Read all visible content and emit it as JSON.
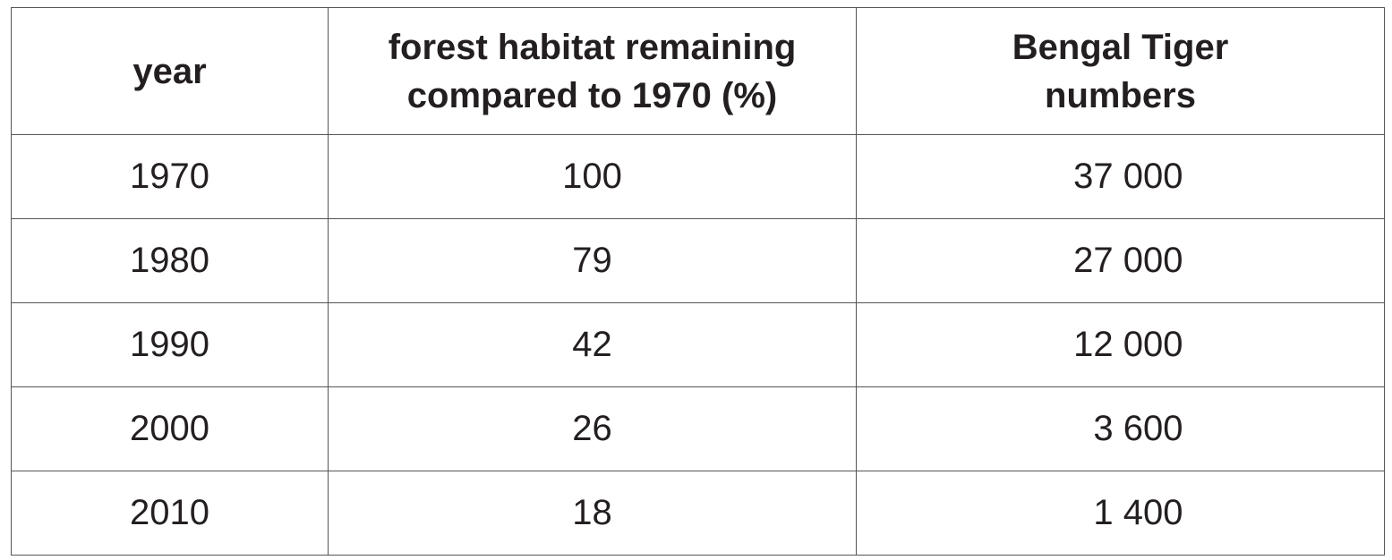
{
  "table": {
    "header": [
      "year",
      "forest habitat remaining compared to 1970 (%)",
      "Bengal Tiger numbers"
    ],
    "rows": [
      [
        "1970",
        "100",
        "37 000"
      ],
      [
        "1980",
        "79",
        "27 000"
      ],
      [
        "1990",
        "42",
        "12 000"
      ],
      [
        "2000",
        "26",
        "3 600"
      ],
      [
        "2010",
        "18",
        "1 400"
      ]
    ]
  }
}
